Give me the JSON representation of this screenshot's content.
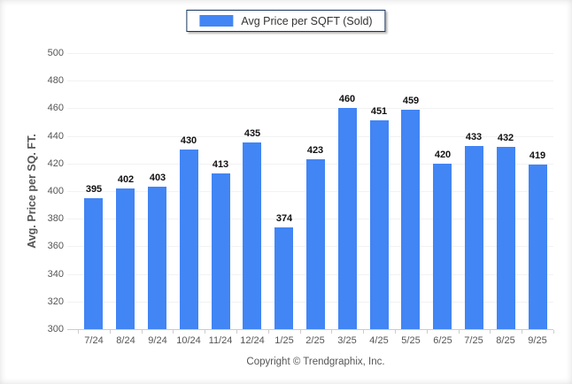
{
  "legend": {
    "label": "Avg Price per SQFT (Sold)",
    "swatch_color": "#4285F4"
  },
  "chart_data": {
    "type": "bar",
    "title": "",
    "series_name": "Avg Price per SQFT (Sold)",
    "categories": [
      "7/24",
      "8/24",
      "9/24",
      "10/24",
      "11/24",
      "12/24",
      "1/25",
      "2/25",
      "3/25",
      "4/25",
      "5/25",
      "6/25",
      "7/25",
      "8/25",
      "9/25"
    ],
    "values": [
      395,
      402,
      403,
      430,
      413,
      435,
      374,
      423,
      460,
      451,
      459,
      420,
      433,
      432,
      419
    ],
    "xlabel": "",
    "ylabel": "Avg. Price per SQ. FT.",
    "ylim": [
      300,
      500
    ],
    "ytick_step": 20,
    "yticks": [
      300,
      320,
      340,
      360,
      380,
      400,
      420,
      440,
      460,
      480,
      500
    ],
    "grid": "horizontal",
    "legend_position": "top-center",
    "bar_color": "#4285F4",
    "value_labels_shown": true
  },
  "footer": {
    "copyright": "Copyright © Trendgraphix, Inc."
  }
}
